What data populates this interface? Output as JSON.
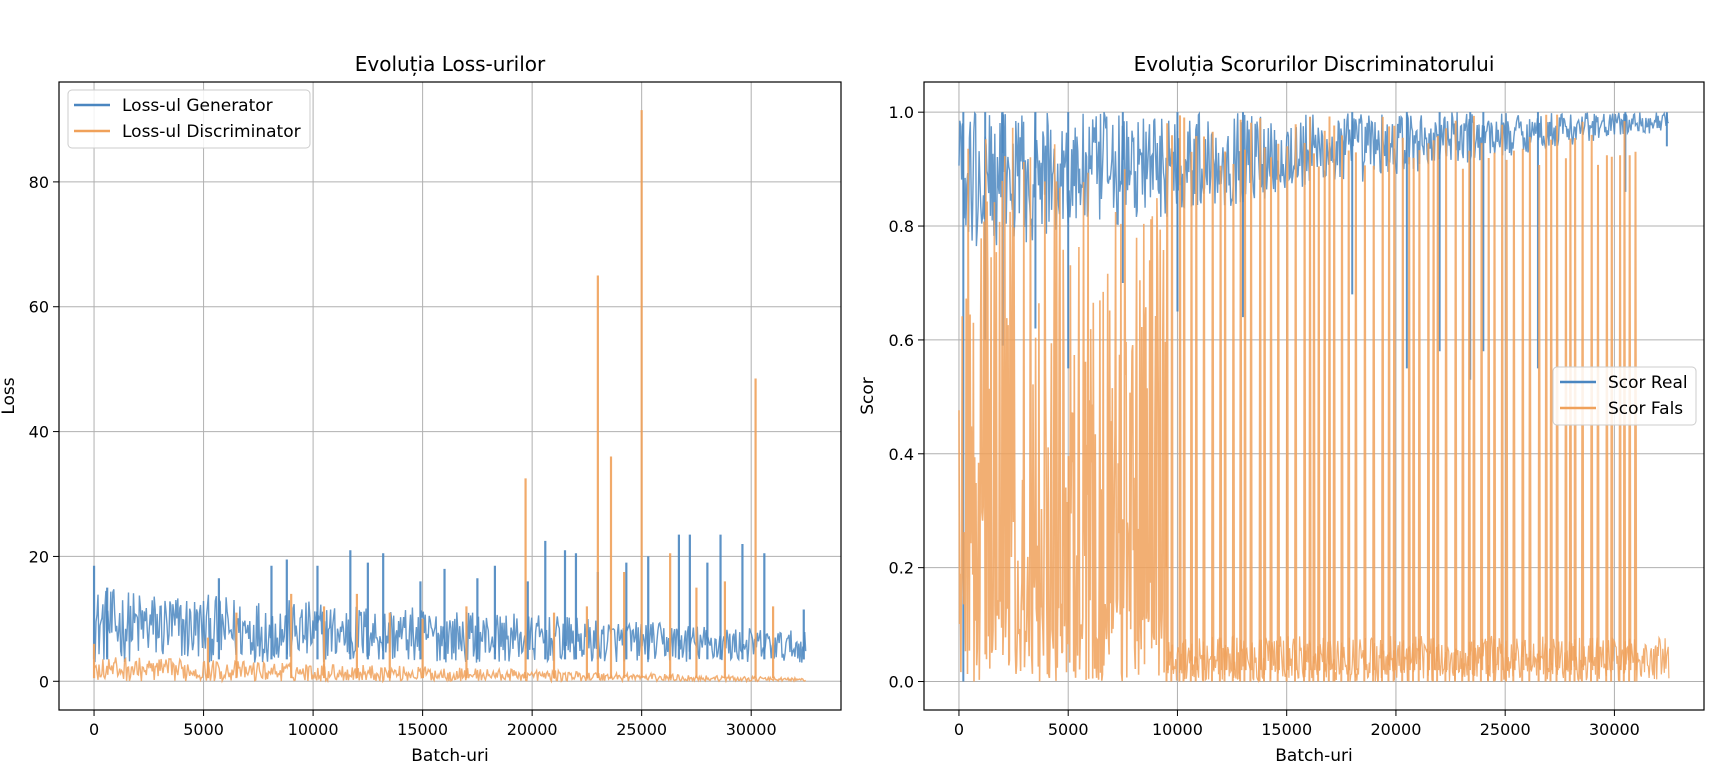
{
  "chart_data": [
    {
      "type": "line",
      "title": "Evoluția Loss-urilor",
      "xlabel": "Batch-uri",
      "ylabel": "Loss",
      "xlim": [
        -1600,
        34100
      ],
      "ylim": [
        -4.6,
        96.0
      ],
      "xticks": [
        0,
        5000,
        10000,
        15000,
        20000,
        25000,
        30000
      ],
      "xtick_labels": [
        "0",
        "5000",
        "10000",
        "15000",
        "20000",
        "25000",
        "30000"
      ],
      "yticks": [
        0,
        20,
        40,
        60,
        80
      ],
      "ytick_labels": [
        "0",
        "20",
        "40",
        "60",
        "80"
      ],
      "grid": true,
      "legend_position": "upper-left",
      "series": [
        {
          "name": "Loss-ul Generator",
          "color": "#4a86c0",
          "band": {
            "x_end": 32500,
            "low": 3,
            "high_start": 15,
            "high_end": 8
          },
          "spikes": [
            [
              0,
              18.5
            ],
            [
              600,
              15
            ],
            [
              5700,
              16.5
            ],
            [
              8100,
              18.5
            ],
            [
              8800,
              19.5
            ],
            [
              10200,
              18.5
            ],
            [
              11700,
              21
            ],
            [
              12500,
              19
            ],
            [
              13200,
              20.5
            ],
            [
              14900,
              16
            ],
            [
              16000,
              18
            ],
            [
              17500,
              16.5
            ],
            [
              18300,
              18.5
            ],
            [
              19800,
              16
            ],
            [
              20600,
              22.5
            ],
            [
              21500,
              21
            ],
            [
              22000,
              20.5
            ],
            [
              23000,
              17.5
            ],
            [
              24300,
              19
            ],
            [
              25300,
              20
            ],
            [
              26700,
              23.5
            ],
            [
              27200,
              23.5
            ],
            [
              28000,
              19
            ],
            [
              28600,
              23.5
            ],
            [
              29600,
              22
            ],
            [
              30600,
              20.5
            ],
            [
              32400,
              11.5
            ]
          ]
        },
        {
          "name": "Loss-ul Discriminator",
          "color": "#f0a15a",
          "band": {
            "x_end": 32500,
            "low": 0,
            "high_start": 4,
            "high_end": 0.5
          },
          "spikes": [
            [
              0,
              6
            ],
            [
              5200,
              7
            ],
            [
              6500,
              11
            ],
            [
              9000,
              14
            ],
            [
              10500,
              12
            ],
            [
              12000,
              14
            ],
            [
              13500,
              11
            ],
            [
              15000,
              10
            ],
            [
              17000,
              12
            ],
            [
              19700,
              32.5
            ],
            [
              21000,
              11
            ],
            [
              22500,
              12
            ],
            [
              23000,
              65
            ],
            [
              23600,
              36
            ],
            [
              24200,
              17.5
            ],
            [
              25000,
              91.5
            ],
            [
              26300,
              20.5
            ],
            [
              27500,
              15
            ],
            [
              28800,
              16
            ],
            [
              30200,
              48.5
            ],
            [
              31000,
              12
            ]
          ]
        }
      ]
    },
    {
      "type": "line",
      "title": "Evoluția Scorurilor Discriminatorului",
      "xlabel": "Batch-uri",
      "ylabel": "Scor",
      "xlim": [
        -1600,
        34100
      ],
      "ylim": [
        -0.05,
        1.053
      ],
      "xticks": [
        0,
        5000,
        10000,
        15000,
        20000,
        25000,
        30000
      ],
      "xtick_labels": [
        "0",
        "5000",
        "10000",
        "15000",
        "20000",
        "25000",
        "30000"
      ],
      "yticks": [
        0.0,
        0.2,
        0.4,
        0.6,
        0.8,
        1.0
      ],
      "ytick_labels": [
        "0.0",
        "0.2",
        "0.4",
        "0.6",
        "0.8",
        "1.0"
      ],
      "grid": true,
      "legend_position": "center-right",
      "series": [
        {
          "name": "Scor Real",
          "color": "#4a86c0",
          "band": {
            "x_end": 32500,
            "low": 0.75,
            "high": 1.0
          },
          "dips": [
            [
              200,
              0.0
            ],
            [
              1200,
              0.6
            ],
            [
              2000,
              0.59
            ],
            [
              3500,
              0.62
            ],
            [
              5000,
              0.55
            ],
            [
              7500,
              0.7
            ],
            [
              10000,
              0.65
            ],
            [
              13000,
              0.64
            ],
            [
              18000,
              0.68
            ],
            [
              20500,
              0.55
            ],
            [
              22000,
              0.58
            ],
            [
              23400,
              0.53
            ],
            [
              24000,
              0.58
            ],
            [
              26500,
              0.55
            ],
            [
              30500,
              0.86
            ],
            [
              32400,
              0.94
            ]
          ]
        },
        {
          "name": "Scor Fals",
          "color": "#f0a15a",
          "dense_end": 9500,
          "spikes_end": 31000,
          "tail_end": 32500,
          "tail_high": 0.08
        }
      ]
    }
  ]
}
